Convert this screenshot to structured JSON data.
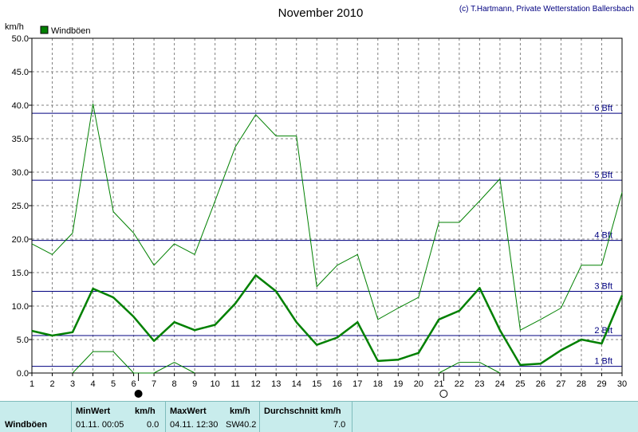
{
  "title": "November 2010",
  "copyright": "(c) T.Hartmann, Private Wetterstation Ballersbach",
  "legend_label": "Windböen",
  "ylabel": "km/h",
  "colors": {
    "series": "#008000",
    "bft": "#000080",
    "grid": "#808080",
    "stats_bg": "#c8ecec"
  },
  "chart_data": {
    "type": "line",
    "ylim": [
      0,
      50
    ],
    "yticks": [
      "0.0",
      "5.0",
      "10.0",
      "15.0",
      "20.0",
      "25.0",
      "30.0",
      "35.0",
      "40.0",
      "45.0",
      "50.0"
    ],
    "x": [
      1,
      2,
      3,
      4,
      5,
      6,
      7,
      8,
      9,
      10,
      11,
      12,
      13,
      14,
      15,
      16,
      17,
      18,
      19,
      20,
      21,
      22,
      23,
      24,
      25,
      26,
      27,
      28,
      29,
      30
    ],
    "grid": true,
    "legend": "top-left",
    "series": [
      {
        "name": "Windböen",
        "role": "max",
        "values": [
          19.3,
          17.7,
          20.9,
          40.2,
          24.1,
          20.9,
          16.1,
          19.3,
          17.7,
          25.7,
          33.8,
          38.6,
          35.4,
          35.4,
          12.9,
          16.1,
          17.7,
          8.0,
          9.7,
          11.3,
          22.5,
          22.5,
          25.7,
          29.0,
          6.4,
          8.0,
          9.7,
          16.1,
          16.1,
          27.0
        ]
      },
      {
        "role": "avg",
        "values": [
          6.3,
          5.6,
          6.1,
          12.6,
          11.3,
          8.4,
          4.8,
          7.6,
          6.4,
          7.2,
          10.4,
          14.6,
          12.2,
          7.6,
          4.2,
          5.3,
          7.6,
          1.8,
          2.0,
          3.0,
          8.0,
          9.3,
          12.7,
          6.4,
          1.2,
          1.4,
          3.4,
          5.0,
          4.4,
          11.6
        ]
      },
      {
        "role": "min",
        "values": [
          null,
          null,
          0,
          3.2,
          3.2,
          0,
          0,
          1.6,
          0,
          null,
          null,
          null,
          null,
          null,
          null,
          null,
          null,
          null,
          null,
          null,
          0,
          1.6,
          1.6,
          0,
          null,
          null,
          null,
          null,
          null,
          null
        ]
      }
    ],
    "bft_lines": [
      {
        "label": "1 Bft",
        "value": 1
      },
      {
        "label": "2 Bft",
        "value": 5.6
      },
      {
        "label": "3 Bft",
        "value": 12.2
      },
      {
        "label": "4 Bft",
        "value": 19.8
      },
      {
        "label": "5 Bft",
        "value": 28.8
      },
      {
        "label": "6 Bft",
        "value": 38.8
      }
    ],
    "moon": [
      {
        "day": 6,
        "phase": "new"
      },
      {
        "day": 21,
        "phase": "full"
      }
    ]
  },
  "stats": {
    "row_label": "Windböen",
    "min_header": "MinWert",
    "min_unit": "km/h",
    "min_time": "01.11.  00:05",
    "min_value": "0.0",
    "max_header": "MaxWert",
    "max_unit": "km/h",
    "max_time": "04.11.  12:30",
    "max_dir": "SW",
    "max_value": "40.2",
    "avg_header": "Durchschnitt km/h",
    "avg_value": "7.0"
  }
}
